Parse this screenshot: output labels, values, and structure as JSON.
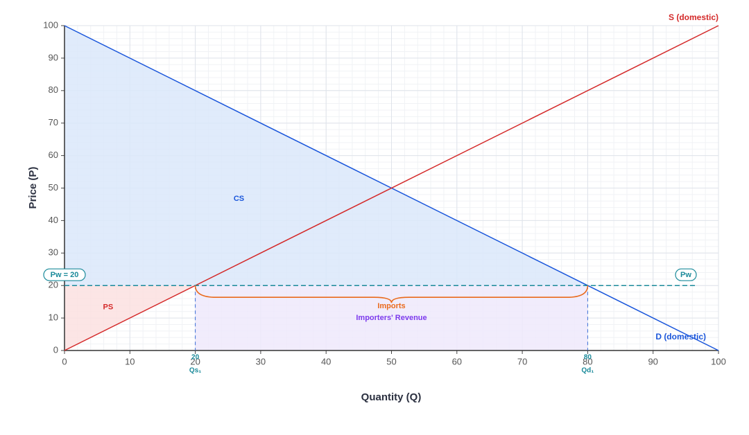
{
  "chart_data": {
    "type": "line",
    "x_label": "Quantity (Q)",
    "y_label": "Price (P)",
    "xlim": [
      0,
      100
    ],
    "ylim": [
      0,
      100
    ],
    "xticks": [
      0,
      10,
      20,
      30,
      40,
      50,
      60,
      70,
      80,
      90,
      100
    ],
    "yticks": [
      0,
      10,
      20,
      30,
      40,
      50,
      60,
      70,
      80,
      90,
      100
    ],
    "grid": true,
    "series": [
      {
        "name": "D (domestic)",
        "color": "#1a56db",
        "x": [
          0,
          100
        ],
        "values": [
          100,
          0
        ]
      },
      {
        "name": "S (domestic)",
        "color": "#d42a2a",
        "x": [
          0,
          100
        ],
        "values": [
          0,
          100
        ]
      }
    ],
    "world_price": {
      "value": 20,
      "label": "Pw = 20",
      "short_label": "Pw",
      "color": "#1a8a9a"
    },
    "quantities": [
      {
        "label": "Qs₁",
        "value": 20
      },
      {
        "label": "Qd₁",
        "value": 80
      }
    ],
    "areas": [
      {
        "name": "CS",
        "color": "#1a56db",
        "fill": "#dbe8fa",
        "x": [
          0,
          80,
          0
        ],
        "y": [
          100,
          20,
          20
        ]
      },
      {
        "name": "PS",
        "color": "#d42a2a",
        "fill": "#fbe0e0",
        "x": [
          0,
          20,
          0
        ],
        "y": [
          0,
          20,
          20
        ]
      },
      {
        "name": "Importers' Revenue",
        "color": "#7c3aed",
        "fill": "#efe9fc",
        "x": [
          20,
          80,
          80,
          20
        ],
        "y": [
          0,
          0,
          20,
          20
        ]
      }
    ],
    "imports": {
      "label": "Imports",
      "color": "#ea6a1c"
    }
  }
}
